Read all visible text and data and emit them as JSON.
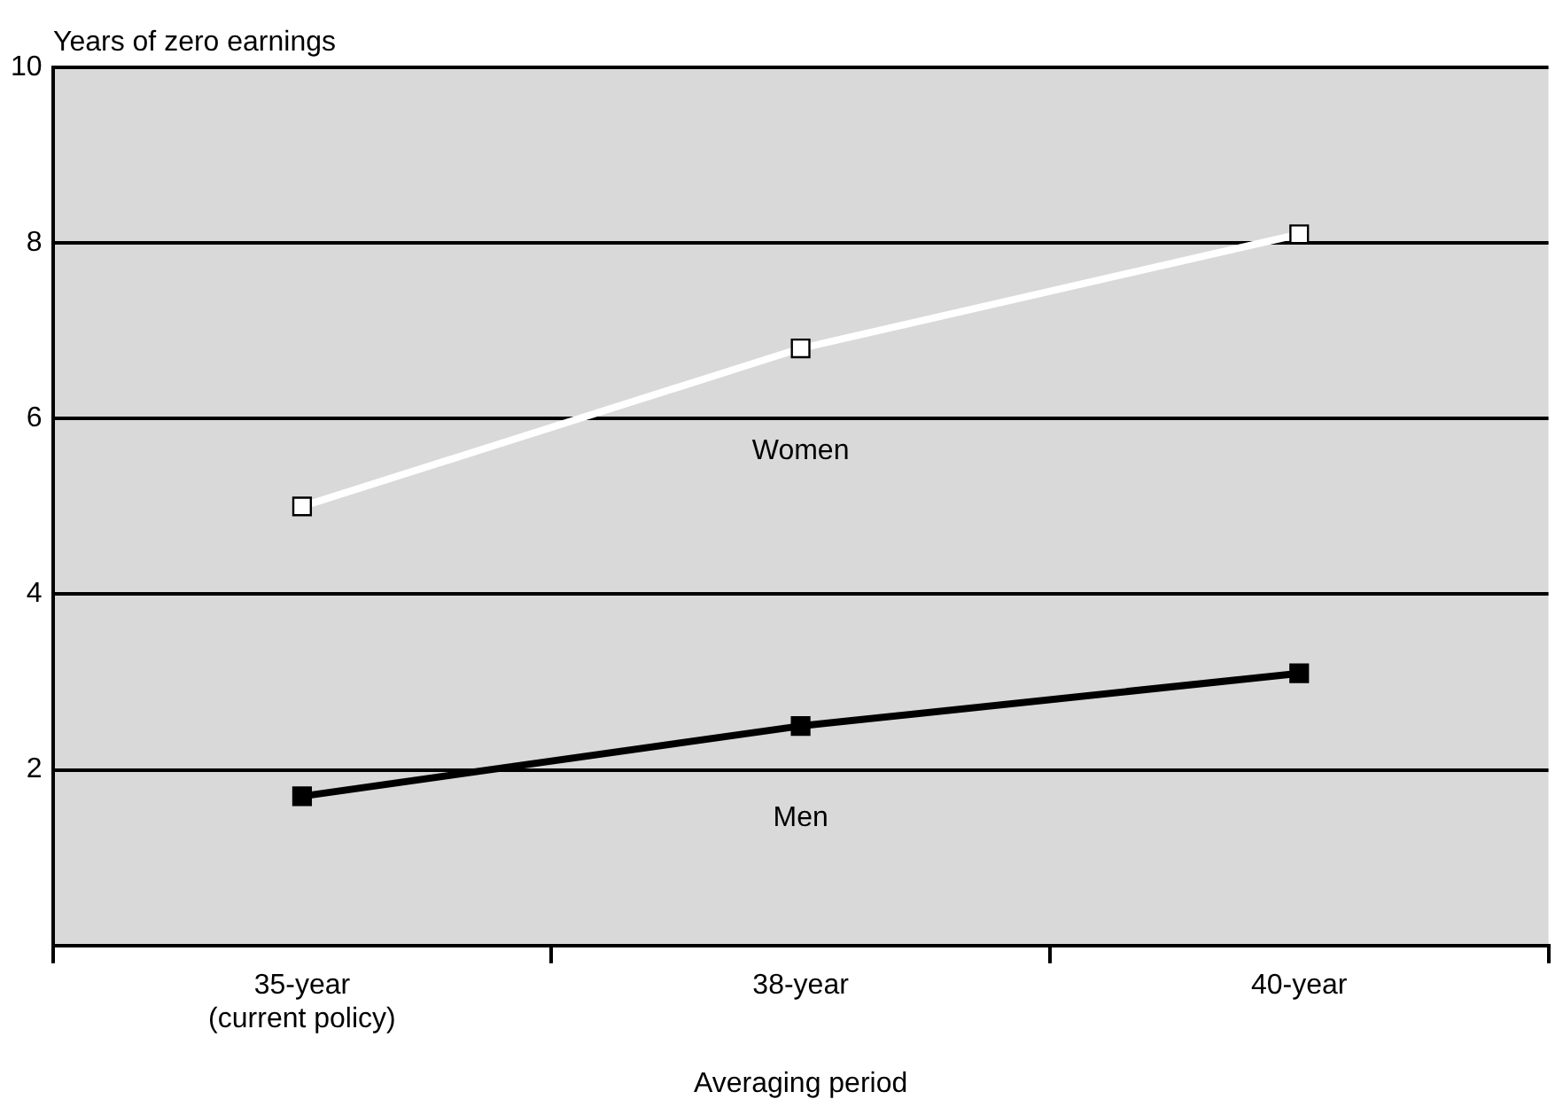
{
  "chart_data": {
    "type": "line",
    "ylabel": "Years of zero earnings",
    "xlabel": "Averaging period",
    "categories": [
      "35-year\n(current policy)",
      "38-year",
      "40-year"
    ],
    "series": [
      {
        "name": "Women",
        "color": "#ffffff",
        "values": [
          5.0,
          6.8,
          8.1
        ]
      },
      {
        "name": "Men",
        "color": "#000000",
        "values": [
          1.7,
          2.5,
          3.1
        ]
      }
    ],
    "ylim": [
      0,
      10
    ],
    "yticks": [
      {
        "value": 0,
        "label": null
      },
      2,
      4,
      6,
      8,
      10
    ],
    "grid": "y",
    "legend": false,
    "marker": "square",
    "line_style": "solid"
  }
}
